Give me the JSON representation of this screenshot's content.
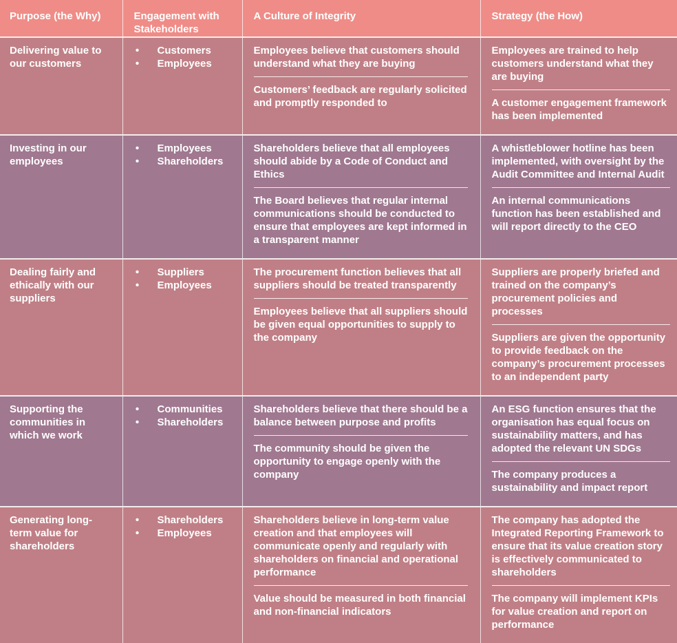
{
  "headers": {
    "purpose": "Purpose (the Why)",
    "engagement": "Engagement with Stakeholders",
    "culture": "A Culture of Integrity",
    "strategy": "Strategy (the How)"
  },
  "rows": [
    {
      "purpose": "Delivering value to our customers",
      "stakeholders": [
        "Customers",
        "Employees"
      ],
      "culture": [
        "Employees believe that customers should understand what they are buying",
        "Customers’ feedback are regularly solicited and promptly responded to"
      ],
      "strategy": [
        "Employees are trained to help customers understand what they are buying",
        "A customer engagement framework has been implemented"
      ]
    },
    {
      "purpose": "Investing in our employees",
      "stakeholders": [
        "Employees",
        "Shareholders"
      ],
      "culture": [
        "Shareholders believe that all employees should abide by a Code of Conduct and Ethics",
        "The Board believes that regular internal communications should be conducted to ensure that employees are kept informed in a transparent manner"
      ],
      "strategy": [
        "A whistleblower hotline has been implemented, with oversight by the Audit Committee and Internal Audit",
        "An internal communications function has been established and will report directly to the CEO"
      ]
    },
    {
      "purpose": "Dealing fairly and ethically with our suppliers",
      "stakeholders": [
        "Suppliers",
        "Employees"
      ],
      "culture": [
        "The procurement function believes that all suppliers should be treated transparently",
        "Employees believe that all suppliers should be given equal opportunities to supply to the company"
      ],
      "strategy": [
        "Suppliers are properly briefed and trained on the company’s procurement policies and processes",
        "Suppliers are given the opportunity to provide feedback on the company’s  procurement processes to an independent party"
      ]
    },
    {
      "purpose": "Supporting the communities in which we work",
      "stakeholders": [
        "Communities",
        "Shareholders"
      ],
      "culture": [
        "Shareholders believe that there should be a balance between purpose and profits",
        "The community should be given the opportunity to engage openly with the company"
      ],
      "strategy": [
        "An ESG function ensures that the organisation has equal focus on sustainability matters, and has adopted the relevant UN SDGs",
        "The company produces a sustainability and impact report"
      ]
    },
    {
      "purpose": "Generating long-term value for shareholders",
      "stakeholders": [
        "Shareholders",
        "Employees"
      ],
      "culture": [
        "Shareholders believe in long-term value creation and that employees will communicate openly and regularly with shareholders on financial and operational performance",
        "Value should be measured in both financial and non-financial indicators"
      ],
      "strategy": [
        "The company has adopted the Integrated Reporting Framework to ensure that its value creation story is effectively communicated to shareholders",
        "The company will implement KPIs for value creation and report on performance"
      ]
    }
  ],
  "colors": {
    "header": "#ef8c87",
    "row_rose": "#c07f86",
    "row_purple": "#a07890",
    "text": "#ffffff"
  },
  "bullet_glyph": "•"
}
